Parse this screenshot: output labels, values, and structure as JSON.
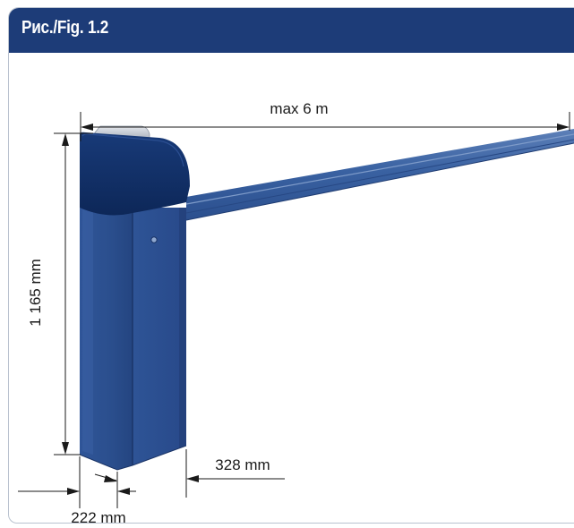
{
  "figure": {
    "title": "Рис./Fig. 1.2"
  },
  "dimensions": {
    "boom_length": "max 6 m",
    "cabinet_height": "1 165 mm",
    "cabinet_width": "222 mm",
    "cabinet_depth": "328 mm"
  },
  "colors": {
    "header": "#1d3c78",
    "cabinet": "#2b4f8e",
    "cabinet_cap": "#0f2c63",
    "boom": "#3a62a2",
    "dimension_lines": "#1a1a1a"
  }
}
